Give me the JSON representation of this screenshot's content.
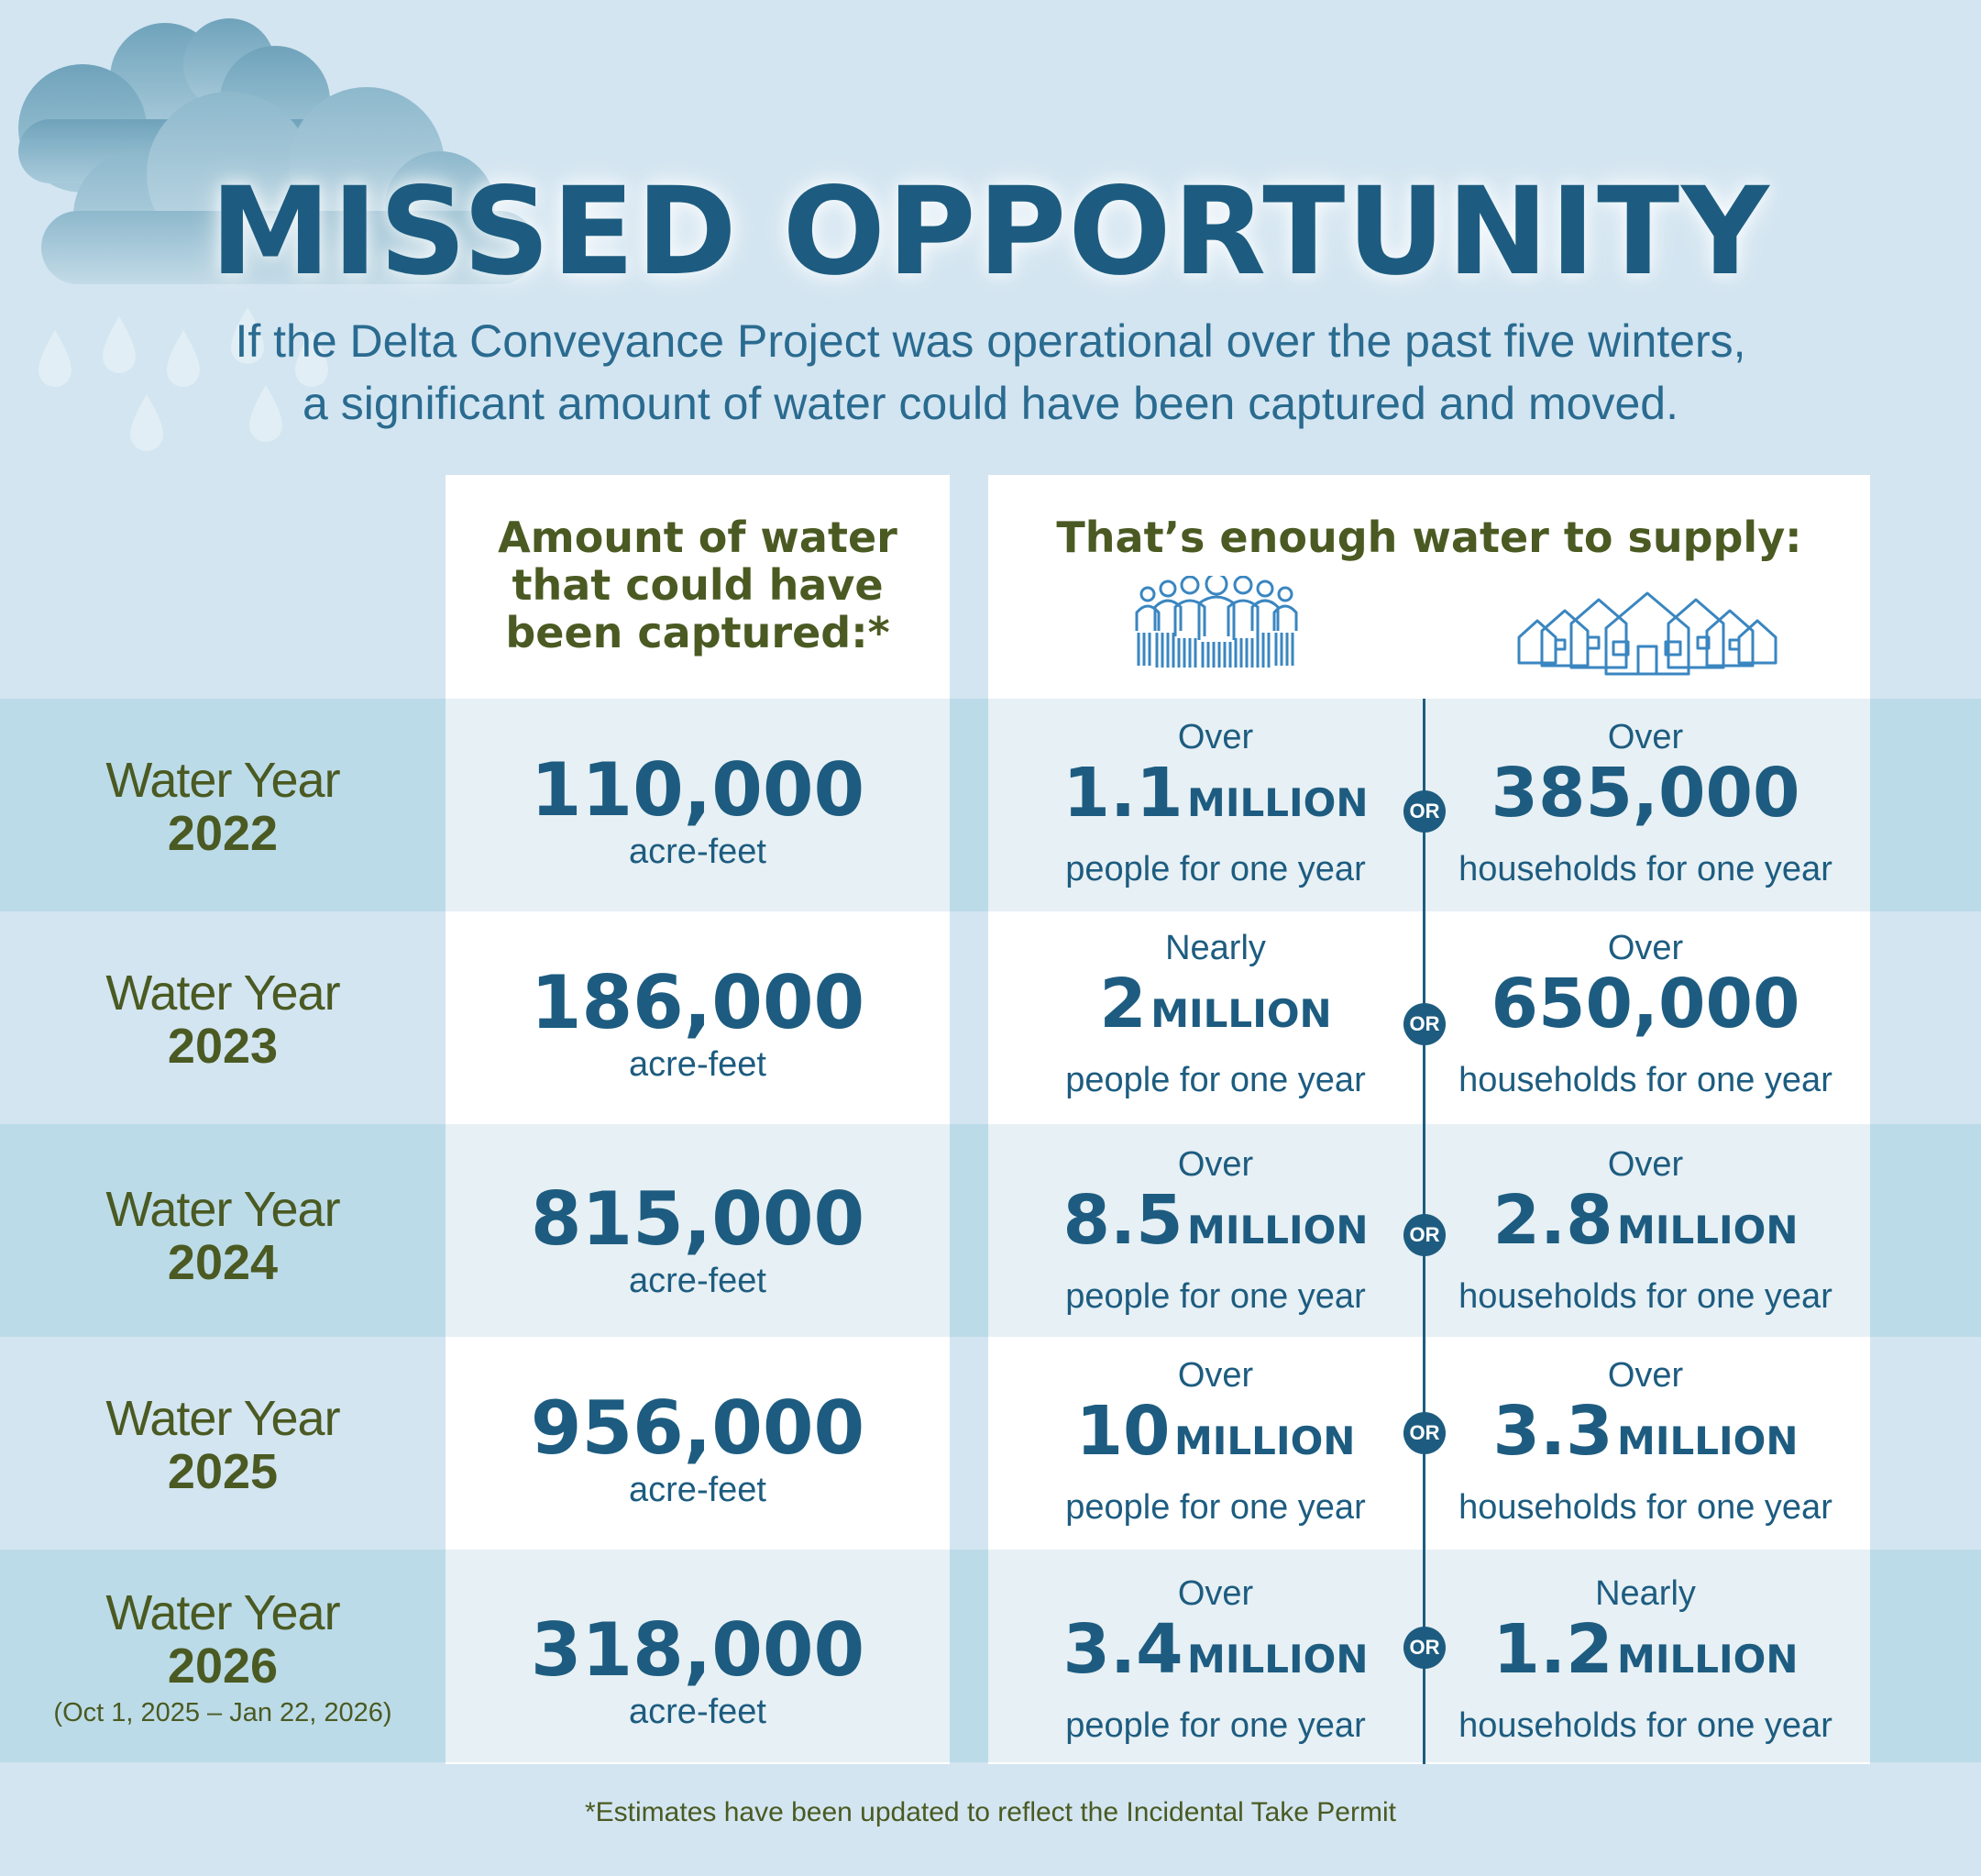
{
  "header": {
    "title": "MISSED OPPORTUNITY",
    "subtitle_line1": "If the Delta Conveyance Project was operational over the past five winters,",
    "subtitle_line2": "a significant amount of water could have been captured and moved."
  },
  "columns": {
    "captured_line1": "Amount of water",
    "captured_line2": "that could have",
    "captured_line3": "been captured:*",
    "supply": "That’s enough water to supply:",
    "people_icon": "people-group-icon",
    "houses_icon": "houses-icon"
  },
  "or_label": "OR",
  "rows": [
    {
      "label": "Water Year",
      "year": "2022",
      "note": "",
      "amount": "110,000",
      "unit": "acre-feet",
      "people_qual": "Over",
      "people_num": "1.1",
      "people_mult": "MILLION",
      "people_desc": "people for one year",
      "house_qual": "Over",
      "house_num": "385,000",
      "house_mult": "",
      "house_desc": "households for one year"
    },
    {
      "label": "Water Year",
      "year": "2023",
      "note": "",
      "amount": "186,000",
      "unit": "acre-feet",
      "people_qual": "Nearly",
      "people_num": "2",
      "people_mult": "MILLION",
      "people_desc": "people for one year",
      "house_qual": "Over",
      "house_num": "650,000",
      "house_mult": "",
      "house_desc": "households for one year"
    },
    {
      "label": "Water Year",
      "year": "2024",
      "note": "",
      "amount": "815,000",
      "unit": "acre-feet",
      "people_qual": "Over",
      "people_num": "8.5",
      "people_mult": "MILLION",
      "people_desc": "people for one year",
      "house_qual": "Over",
      "house_num": "2.8",
      "house_mult": "MILLION",
      "house_desc": "households for one year"
    },
    {
      "label": "Water Year",
      "year": "2025",
      "note": "",
      "amount": "956,000",
      "unit": "acre-feet",
      "people_qual": "Over",
      "people_num": "10",
      "people_mult": "MILLION",
      "people_desc": "people for one year",
      "house_qual": "Over",
      "house_num": "3.3",
      "house_mult": "MILLION",
      "house_desc": "households for one year"
    },
    {
      "label": "Water Year",
      "year": "2026",
      "note": "(Oct 1, 2025 – Jan 22, 2026)",
      "amount": "318,000",
      "unit": "acre-feet",
      "people_qual": "Over",
      "people_num": "3.4",
      "people_mult": "MILLION",
      "people_desc": "people for one year",
      "house_qual": "Nearly",
      "house_num": "1.2",
      "house_mult": "MILLION",
      "house_desc": "households for one year"
    }
  ],
  "footnote": "*Estimates have been updated to reflect the Incidental Take Permit",
  "colors": {
    "navy": "#1d5c80",
    "olive": "#4a5a22",
    "band": "#bcdbe8",
    "background": "#d3e5f1"
  }
}
